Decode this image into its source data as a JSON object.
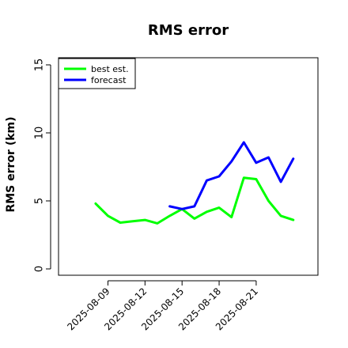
{
  "chart_data": {
    "type": "line",
    "title": "RMS error",
    "xlabel": "",
    "ylabel": "RMS error (km)",
    "ylim": [
      0,
      15
    ],
    "yticks": [
      0,
      5,
      10,
      15
    ],
    "x_range": [
      "2025-08-05",
      "2025-08-26"
    ],
    "xticks": [
      "2025-08-09",
      "2025-08-12",
      "2025-08-15",
      "2025-08-18",
      "2025-08-21"
    ],
    "grid": false,
    "legend_position": "top-left",
    "series": [
      {
        "name": "best est.",
        "color": "#00ff00",
        "x": [
          "2025-08-08",
          "2025-08-09",
          "2025-08-10",
          "2025-08-11",
          "2025-08-12",
          "2025-08-13",
          "2025-08-14",
          "2025-08-15",
          "2025-08-16",
          "2025-08-17",
          "2025-08-18",
          "2025-08-19",
          "2025-08-20",
          "2025-08-21",
          "2025-08-22",
          "2025-08-23",
          "2025-08-24"
        ],
        "values": [
          4.8,
          3.9,
          3.4,
          3.5,
          3.6,
          3.35,
          3.9,
          4.4,
          3.7,
          4.2,
          4.5,
          3.8,
          6.7,
          6.6,
          5.0,
          3.9,
          3.6
        ]
      },
      {
        "name": "forecast",
        "color": "#0000ff",
        "x": [
          "2025-08-14",
          "2025-08-15",
          "2025-08-16",
          "2025-08-17",
          "2025-08-18",
          "2025-08-19",
          "2025-08-20",
          "2025-08-21",
          "2025-08-22",
          "2025-08-23",
          "2025-08-24"
        ],
        "values": [
          4.6,
          4.4,
          4.6,
          6.5,
          6.8,
          7.9,
          9.3,
          7.8,
          8.2,
          6.4,
          8.1
        ]
      }
    ]
  }
}
